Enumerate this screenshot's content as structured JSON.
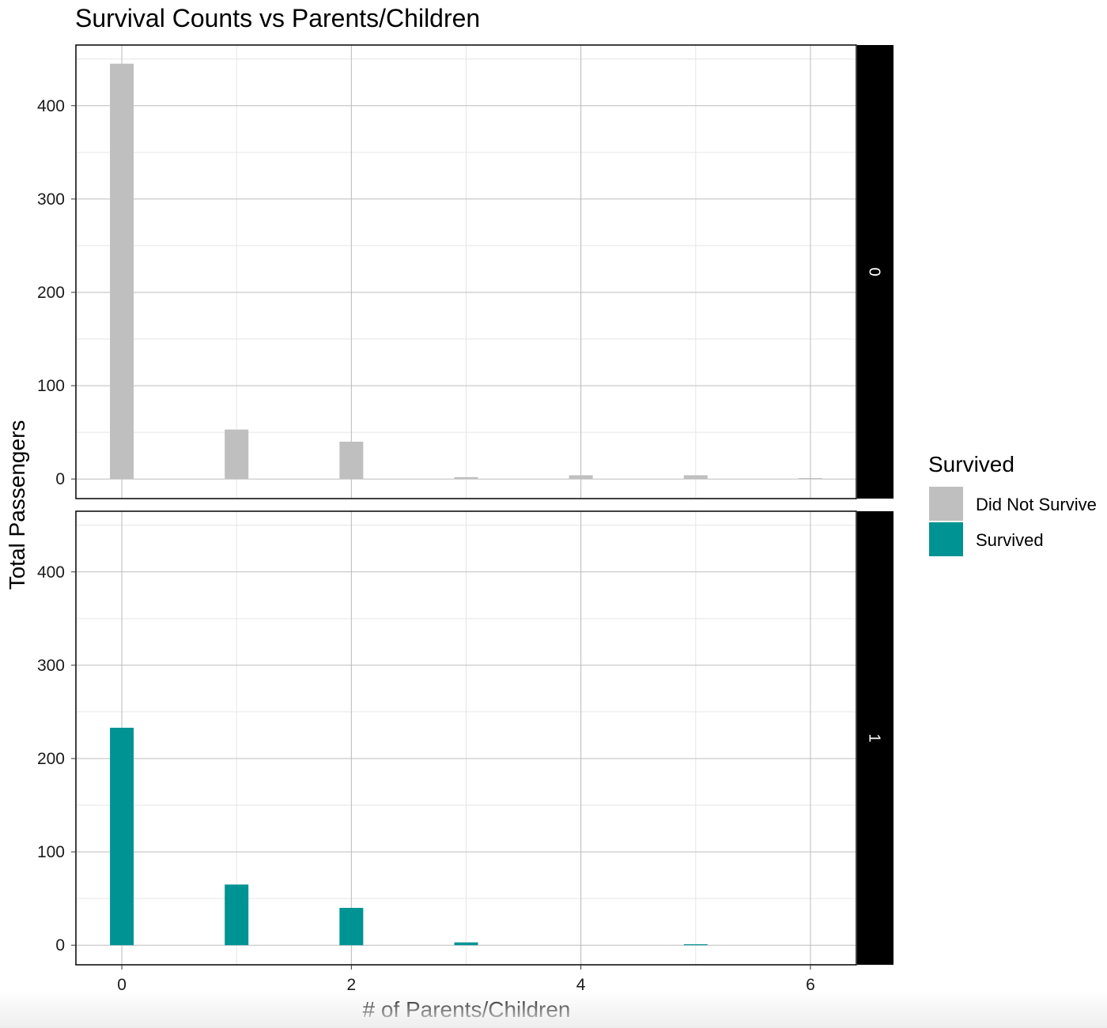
{
  "chart_data": {
    "type": "bar",
    "title": "Survival Counts vs Parents/Children",
    "xlabel": "# of Parents/Children",
    "ylabel": "Total Passengers",
    "x_ticks": [
      0,
      2,
      4,
      6
    ],
    "y_ticks": [
      0,
      100,
      200,
      300,
      400
    ],
    "xlim": [
      -0.4,
      6.4
    ],
    "ylim": [
      -21,
      465
    ],
    "grid": true,
    "legend": {
      "title": "Survived",
      "placement": "right",
      "entries": [
        {
          "label": "Did Not Survive",
          "color": "#bfbfbf"
        },
        {
          "label": "Survived",
          "color": "#009393"
        }
      ]
    },
    "facets": [
      {
        "strip_label": "0",
        "series_name": "Did Not Survive",
        "color": "#bfbfbf",
        "x": [
          0,
          1,
          2,
          3,
          4,
          5,
          6
        ],
        "values": [
          445,
          53,
          40,
          2,
          4,
          4,
          1
        ]
      },
      {
        "strip_label": "1",
        "series_name": "Survived",
        "color": "#009393",
        "x": [
          0,
          1,
          2,
          3,
          4,
          5,
          6
        ],
        "values": [
          233,
          65,
          40,
          3,
          0,
          1,
          0
        ]
      }
    ]
  }
}
